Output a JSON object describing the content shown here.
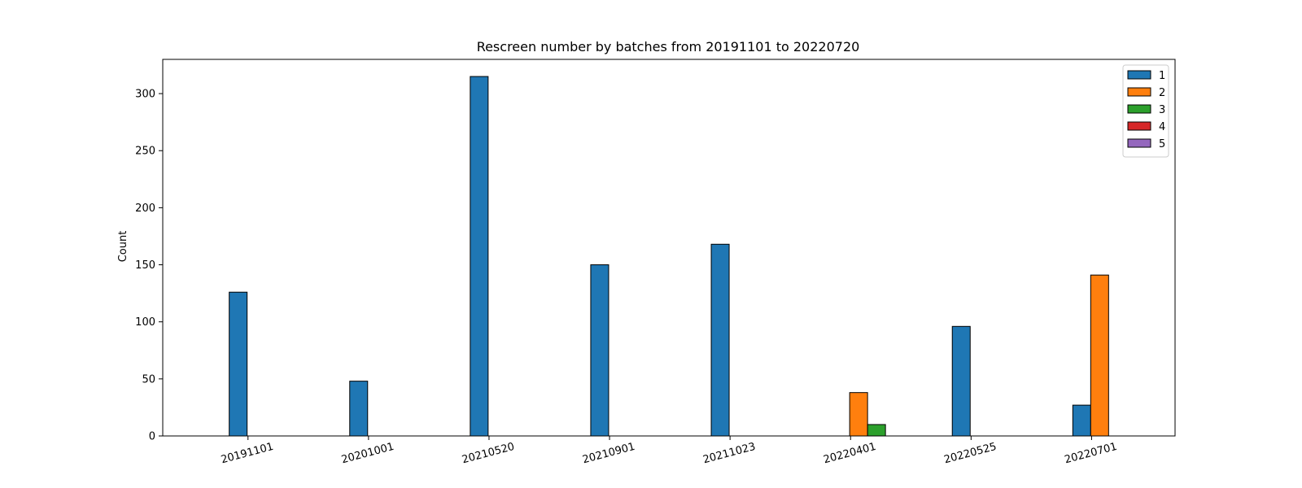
{
  "chart_data": {
    "type": "bar",
    "title": "Rescreen number  by batches from 20191101 to 20220720",
    "xlabel": "",
    "ylabel": "Count",
    "ylim": [
      0,
      330
    ],
    "yticks": [
      0,
      50,
      100,
      150,
      200,
      250,
      300
    ],
    "grid": false,
    "legend_position": "top-right",
    "categories": [
      "20191101",
      "20201001",
      "20210520",
      "20210901",
      "20211023",
      "20220401",
      "20220525",
      "20220701"
    ],
    "series": [
      {
        "name": "1",
        "color": "#1f77b4",
        "values": [
          126,
          48,
          315,
          150,
          168,
          0,
          96,
          27
        ]
      },
      {
        "name": "2",
        "color": "#ff7f0e",
        "values": [
          0,
          0,
          0,
          0,
          0,
          38,
          0,
          141
        ]
      },
      {
        "name": "3",
        "color": "#2ca02c",
        "values": [
          0,
          0,
          0,
          0,
          0,
          10,
          0,
          0
        ]
      },
      {
        "name": "4",
        "color": "#d62728",
        "values": [
          0,
          0,
          0,
          0,
          0,
          0,
          0,
          0
        ]
      },
      {
        "name": "5",
        "color": "#9467bd",
        "values": [
          0,
          0,
          0,
          0,
          0,
          0,
          0,
          0
        ]
      }
    ]
  }
}
